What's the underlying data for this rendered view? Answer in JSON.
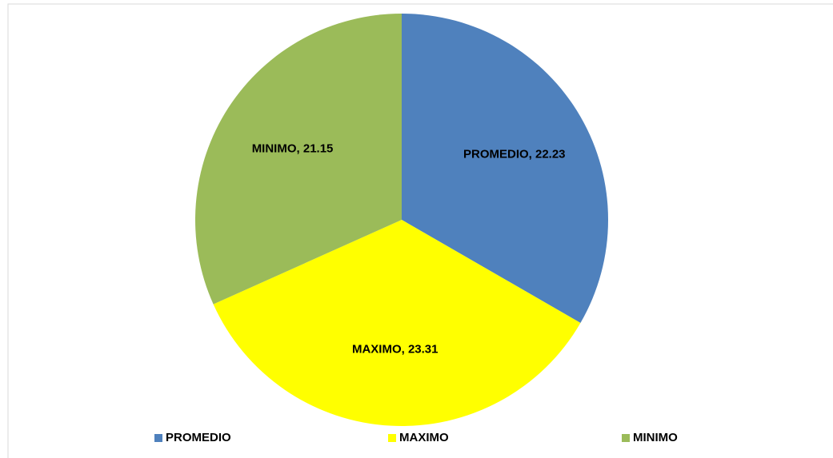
{
  "chart_data": {
    "type": "pie",
    "categories": [
      "PROMEDIO",
      "MAXIMO",
      "MINIMO"
    ],
    "values": [
      22.23,
      23.31,
      21.15
    ],
    "value_labels": [
      "PROMEDIO, 22.23",
      "MAXIMO, 23.31",
      "MINIMO, 21.15"
    ],
    "colors": [
      "#4f81bd",
      "#ffff00",
      "#9bbb59"
    ],
    "legend": "bottom"
  }
}
